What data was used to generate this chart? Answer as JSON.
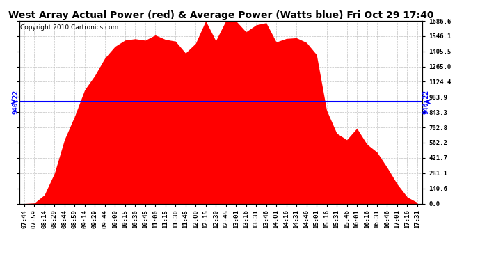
{
  "title": "West Array Actual Power (red) & Average Power (Watts blue) Fri Oct 29 17:40",
  "copyright": "Copyright 2010 Cartronics.com",
  "avg_power": 940.22,
  "y_ticks": [
    0.0,
    140.6,
    281.1,
    421.7,
    562.2,
    702.8,
    843.3,
    983.9,
    1124.4,
    1265.0,
    1405.5,
    1546.1,
    1686.6
  ],
  "ylim": [
    0.0,
    1686.6
  ],
  "x_tick_labels": [
    "07:44",
    "07:59",
    "08:14",
    "08:29",
    "08:44",
    "08:59",
    "09:14",
    "09:29",
    "09:44",
    "10:00",
    "10:15",
    "10:30",
    "10:45",
    "11:00",
    "11:15",
    "11:30",
    "11:45",
    "12:00",
    "12:15",
    "12:30",
    "12:45",
    "13:01",
    "13:16",
    "13:31",
    "13:46",
    "14:01",
    "14:16",
    "14:31",
    "14:46",
    "15:01",
    "15:16",
    "15:31",
    "15:46",
    "16:01",
    "16:16",
    "16:31",
    "16:46",
    "17:01",
    "17:16",
    "17:31"
  ],
  "bar_color": "#ff0000",
  "line_color": "#0000ff",
  "background_color": "#ffffff",
  "grid_color": "#bbbbbb",
  "title_fontsize": 10,
  "copyright_fontsize": 6.5,
  "avg_label_fontsize": 7,
  "tick_fontsize": 6.5
}
